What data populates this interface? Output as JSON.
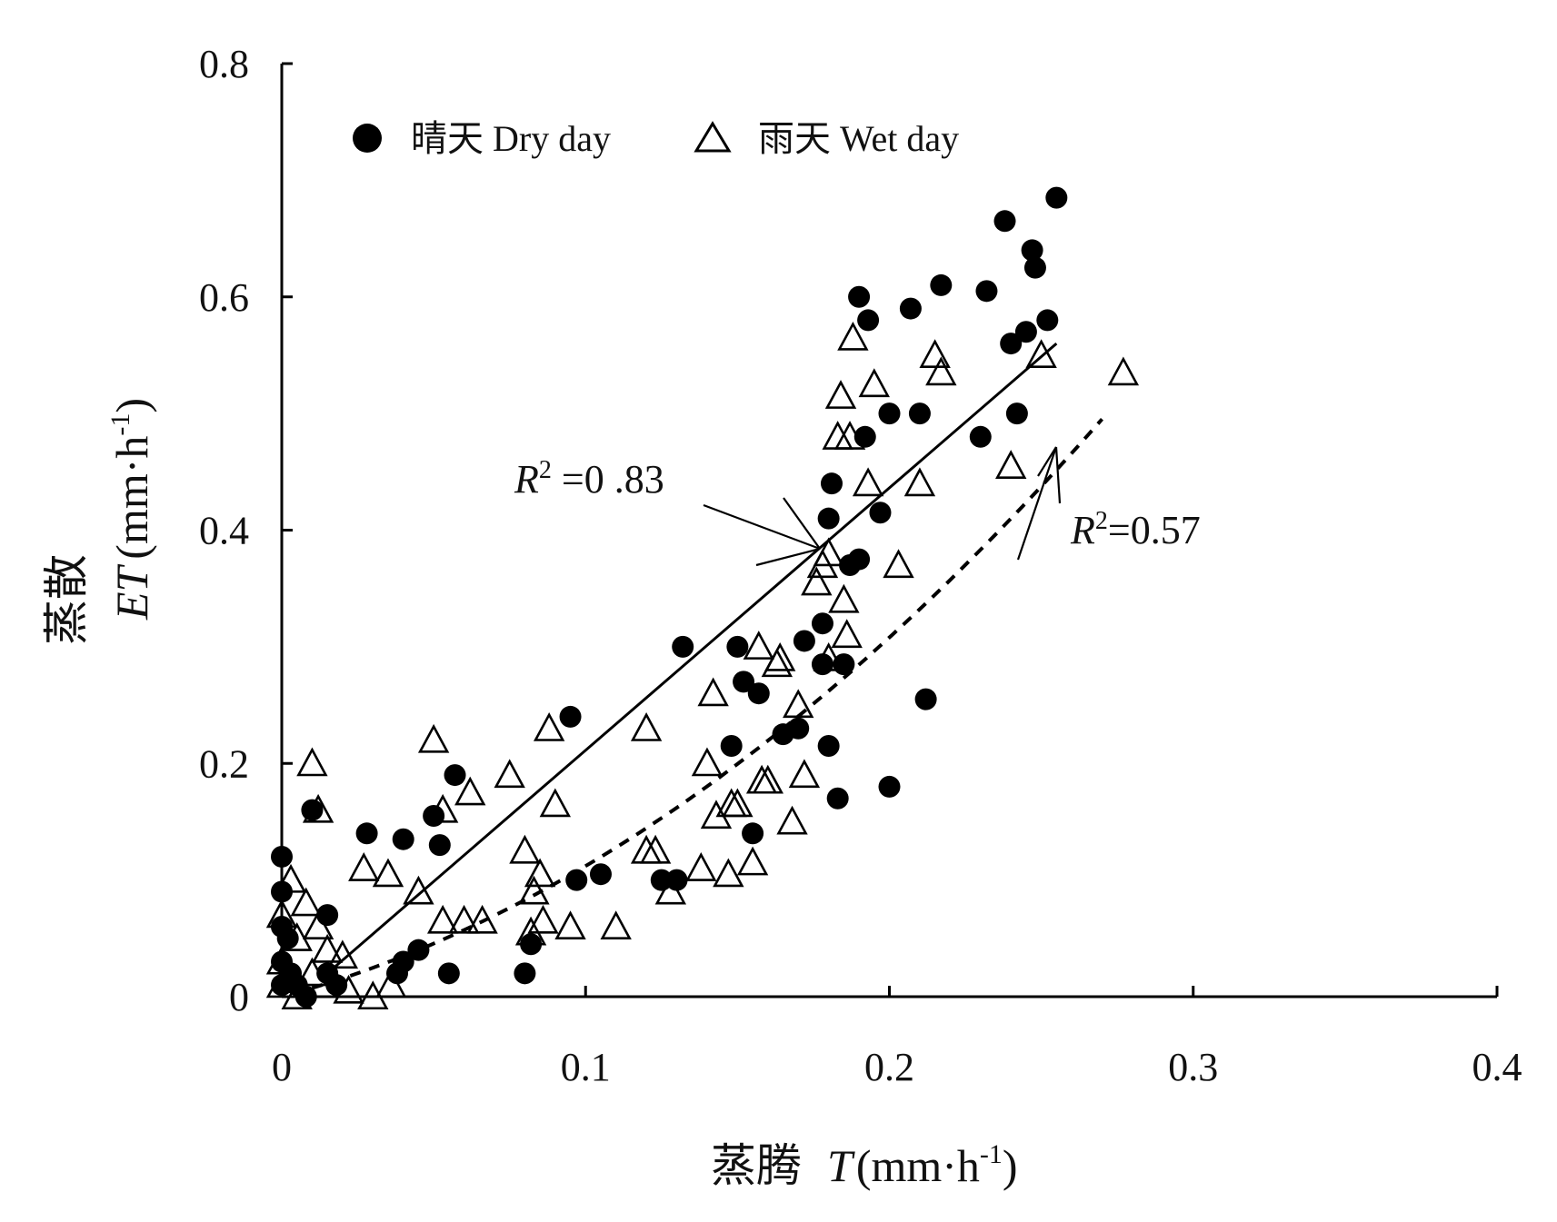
{
  "chart_data": {
    "type": "scatter",
    "xlabel": {
      "cn": "蒸腾",
      "var": "T",
      "unit": "(mm·h",
      "exp": "-1",
      "close": ")"
    },
    "ylabel": {
      "cn": "蒸散",
      "var": "ET",
      "unit": "(mm·h",
      "exp": "-1",
      "close": ")"
    },
    "xlim": [
      0,
      0.4
    ],
    "ylim": [
      0,
      0.8
    ],
    "xticks": [
      "0",
      "0.1",
      "0.2",
      "0.3",
      "0.4"
    ],
    "yticks": [
      "0",
      "0.2",
      "0.4",
      "0.6",
      "0.8"
    ],
    "grid": false,
    "legend_position": "top-left",
    "series": [
      {
        "name": "晴天 Dry day",
        "marker": "filled-circle",
        "color": "#000000",
        "points": [
          [
            0.0,
            0.12
          ],
          [
            0.0,
            0.09
          ],
          [
            0.0,
            0.06
          ],
          [
            0.0,
            0.03
          ],
          [
            0.0,
            0.01
          ],
          [
            0.002,
            0.05
          ],
          [
            0.003,
            0.02
          ],
          [
            0.005,
            0.01
          ],
          [
            0.008,
            0.0
          ],
          [
            0.01,
            0.16
          ],
          [
            0.015,
            0.07
          ],
          [
            0.015,
            0.02
          ],
          [
            0.018,
            0.01
          ],
          [
            0.028,
            0.14
          ],
          [
            0.04,
            0.135
          ],
          [
            0.04,
            0.03
          ],
          [
            0.045,
            0.04
          ],
          [
            0.05,
            0.155
          ],
          [
            0.052,
            0.13
          ],
          [
            0.055,
            0.02
          ],
          [
            0.057,
            0.19
          ],
          [
            0.038,
            0.02
          ],
          [
            0.08,
            0.02
          ],
          [
            0.082,
            0.045
          ],
          [
            0.095,
            0.24
          ],
          [
            0.097,
            0.1
          ],
          [
            0.105,
            0.105
          ],
          [
            0.125,
            0.1
          ],
          [
            0.13,
            0.1
          ],
          [
            0.132,
            0.3
          ],
          [
            0.148,
            0.215
          ],
          [
            0.15,
            0.3
          ],
          [
            0.152,
            0.27
          ],
          [
            0.155,
            0.14
          ],
          [
            0.157,
            0.26
          ],
          [
            0.165,
            0.225
          ],
          [
            0.17,
            0.23
          ],
          [
            0.172,
            0.305
          ],
          [
            0.178,
            0.32
          ],
          [
            0.178,
            0.285
          ],
          [
            0.18,
            0.41
          ],
          [
            0.181,
            0.44
          ],
          [
            0.18,
            0.215
          ],
          [
            0.183,
            0.17
          ],
          [
            0.185,
            0.285
          ],
          [
            0.187,
            0.37
          ],
          [
            0.19,
            0.375
          ],
          [
            0.19,
            0.6
          ],
          [
            0.192,
            0.48
          ],
          [
            0.193,
            0.58
          ],
          [
            0.197,
            0.415
          ],
          [
            0.2,
            0.5
          ],
          [
            0.2,
            0.18
          ],
          [
            0.207,
            0.59
          ],
          [
            0.21,
            0.5
          ],
          [
            0.212,
            0.255
          ],
          [
            0.217,
            0.61
          ],
          [
            0.23,
            0.48
          ],
          [
            0.232,
            0.605
          ],
          [
            0.238,
            0.665
          ],
          [
            0.24,
            0.56
          ],
          [
            0.242,
            0.5
          ],
          [
            0.245,
            0.57
          ],
          [
            0.247,
            0.64
          ],
          [
            0.248,
            0.625
          ],
          [
            0.252,
            0.58
          ],
          [
            0.255,
            0.685
          ]
        ]
      },
      {
        "name": "雨天 Wet day",
        "marker": "open-triangle",
        "color": "#000000",
        "points": [
          [
            0.0,
            0.07
          ],
          [
            0.0,
            0.03
          ],
          [
            0.0,
            0.01
          ],
          [
            0.003,
            0.1
          ],
          [
            0.005,
            0.05
          ],
          [
            0.005,
            0.0
          ],
          [
            0.008,
            0.08
          ],
          [
            0.01,
            0.2
          ],
          [
            0.012,
            0.16
          ],
          [
            0.012,
            0.06
          ],
          [
            0.015,
            0.04
          ],
          [
            0.01,
            0.02
          ],
          [
            0.02,
            0.035
          ],
          [
            0.022,
            0.005
          ],
          [
            0.027,
            0.11
          ],
          [
            0.03,
            0.0
          ],
          [
            0.035,
            0.105
          ],
          [
            0.036,
            0.01
          ],
          [
            0.045,
            0.09
          ],
          [
            0.05,
            0.22
          ],
          [
            0.053,
            0.16
          ],
          [
            0.053,
            0.065
          ],
          [
            0.06,
            0.065
          ],
          [
            0.062,
            0.175
          ],
          [
            0.066,
            0.065
          ],
          [
            0.075,
            0.19
          ],
          [
            0.08,
            0.125
          ],
          [
            0.082,
            0.055
          ],
          [
            0.083,
            0.09
          ],
          [
            0.085,
            0.105
          ],
          [
            0.086,
            0.065
          ],
          [
            0.088,
            0.23
          ],
          [
            0.09,
            0.165
          ],
          [
            0.095,
            0.06
          ],
          [
            0.11,
            0.06
          ],
          [
            0.12,
            0.23
          ],
          [
            0.12,
            0.125
          ],
          [
            0.123,
            0.125
          ],
          [
            0.128,
            0.09
          ],
          [
            0.138,
            0.11
          ],
          [
            0.14,
            0.2
          ],
          [
            0.142,
            0.26
          ],
          [
            0.143,
            0.155
          ],
          [
            0.147,
            0.105
          ],
          [
            0.148,
            0.165
          ],
          [
            0.15,
            0.165
          ],
          [
            0.155,
            0.115
          ],
          [
            0.157,
            0.3
          ],
          [
            0.158,
            0.185
          ],
          [
            0.16,
            0.185
          ],
          [
            0.163,
            0.285
          ],
          [
            0.164,
            0.29
          ],
          [
            0.168,
            0.15
          ],
          [
            0.17,
            0.25
          ],
          [
            0.172,
            0.19
          ],
          [
            0.176,
            0.355
          ],
          [
            0.178,
            0.37
          ],
          [
            0.18,
            0.38
          ],
          [
            0.18,
            0.29
          ],
          [
            0.183,
            0.48
          ],
          [
            0.184,
            0.515
          ],
          [
            0.185,
            0.34
          ],
          [
            0.186,
            0.31
          ],
          [
            0.187,
            0.48
          ],
          [
            0.188,
            0.565
          ],
          [
            0.193,
            0.44
          ],
          [
            0.195,
            0.525
          ],
          [
            0.203,
            0.37
          ],
          [
            0.21,
            0.44
          ],
          [
            0.215,
            0.55
          ],
          [
            0.217,
            0.535
          ],
          [
            0.24,
            0.455
          ],
          [
            0.25,
            0.55
          ],
          [
            0.277,
            0.535
          ]
        ]
      }
    ],
    "fits": [
      {
        "series": "晴天 Dry day",
        "style": "solid",
        "x": [
          0.015,
          0.255
        ],
        "y": [
          0.02,
          0.56
        ]
      },
      {
        "series": "雨天 Wet day",
        "style": "dashed",
        "type": "quadratic",
        "a": 4.2,
        "b": 0.7,
        "c": 0.0,
        "x": [
          0.01,
          0.27
        ]
      }
    ],
    "annotations": [
      {
        "text_italic": "R",
        "sup": "2",
        "rest": " =0 .83"
      },
      {
        "text_italic": "R",
        "sup": "2",
        "rest": "=0.57"
      }
    ]
  }
}
